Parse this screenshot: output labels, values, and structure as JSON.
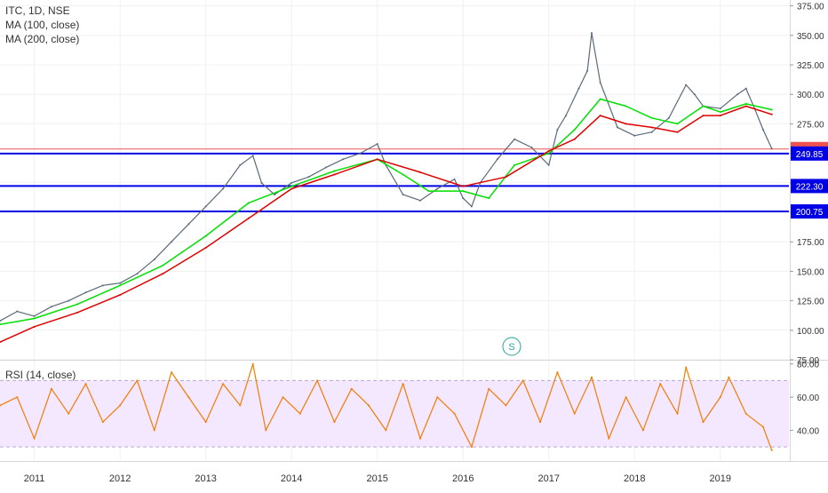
{
  "header": {
    "symbol_line": "ITC, 1D, NSE",
    "ma100_label": "MA (100, close)",
    "ma200_label": "MA (200, close)",
    "rsi_label": "RSI (14, close)",
    "marker_letter": "S"
  },
  "colors": {
    "candle_up": "#26a69a",
    "candle_down": "#ef5350",
    "ma100": "#00e000",
    "ma200": "#e00000",
    "level_line": "#0000e6",
    "rsi_line": "#f57c00",
    "rsi_band_fill": "#f3e8ff",
    "price_badge": "#ef5350",
    "level_badge": "#0000e6",
    "grid": "#f0f0f0",
    "axis_text": "#333333"
  },
  "chart_data": [
    {
      "type": "line",
      "panel": "price",
      "xlabel": "",
      "ylabel": "",
      "x_ticks": [
        "2011",
        "2012",
        "2013",
        "2014",
        "2015",
        "2016",
        "2017",
        "2018",
        "2019"
      ],
      "y_ticks": [
        "375.00",
        "350.00",
        "325.00",
        "300.00",
        "275.00",
        "250.00",
        "225.00",
        "200.00",
        "175.00",
        "150.00",
        "125.00",
        "100.00",
        "75.00"
      ],
      "ylim": [
        75,
        380
      ],
      "xlim": [
        2010.6,
        2019.8
      ],
      "series": [
        {
          "name": "",
          "style": "price",
          "x": [
            2010.6,
            2010.8,
            2011.0,
            2011.2,
            2011.4,
            2011.6,
            2011.8,
            2012.0,
            2012.2,
            2012.4,
            2012.6,
            2012.8,
            2013.0,
            2013.2,
            2013.4,
            2013.55,
            2013.65,
            2013.8,
            2014.0,
            2014.2,
            2014.4,
            2014.6,
            2014.8,
            2015.0,
            2015.1,
            2015.3,
            2015.5,
            2015.7,
            2015.9,
            2016.0,
            2016.1,
            2016.2,
            2016.4,
            2016.6,
            2016.8,
            2017.0,
            2017.1,
            2017.2,
            2017.35,
            2017.45,
            2017.5,
            2017.6,
            2017.8,
            2018.0,
            2018.2,
            2018.4,
            2018.6,
            2018.7,
            2018.8,
            2019.0,
            2019.2,
            2019.3,
            2019.4,
            2019.5,
            2019.6
          ],
          "y": [
            108,
            116,
            112,
            120,
            125,
            132,
            138,
            140,
            148,
            160,
            175,
            190,
            205,
            220,
            240,
            248,
            225,
            215,
            225,
            230,
            238,
            245,
            250,
            258,
            240,
            215,
            210,
            220,
            228,
            212,
            205,
            225,
            245,
            262,
            255,
            240,
            270,
            282,
            305,
            320,
            352,
            310,
            272,
            265,
            268,
            280,
            308,
            300,
            290,
            288,
            300,
            305,
            288,
            270,
            254
          ]
        },
        {
          "name": "MA (100, close)",
          "style": "ma100",
          "x": [
            2010.6,
            2011.0,
            2011.5,
            2012.0,
            2012.5,
            2013.0,
            2013.5,
            2014.0,
            2014.5,
            2015.0,
            2015.3,
            2015.6,
            2016.0,
            2016.3,
            2016.6,
            2017.0,
            2017.3,
            2017.6,
            2017.9,
            2018.2,
            2018.5,
            2018.8,
            2019.0,
            2019.3,
            2019.6
          ],
          "y": [
            105,
            110,
            122,
            138,
            155,
            180,
            208,
            222,
            235,
            245,
            232,
            218,
            218,
            212,
            240,
            250,
            270,
            296,
            290,
            280,
            275,
            290,
            285,
            292,
            287
          ]
        },
        {
          "name": "MA (200, close)",
          "style": "ma200",
          "x": [
            2010.6,
            2011.0,
            2011.5,
            2012.0,
            2012.5,
            2013.0,
            2013.5,
            2014.0,
            2014.5,
            2015.0,
            2015.5,
            2016.0,
            2016.5,
            2017.0,
            2017.3,
            2017.6,
            2017.9,
            2018.2,
            2018.5,
            2018.8,
            2019.0,
            2019.3,
            2019.6
          ],
          "y": [
            90,
            103,
            115,
            130,
            148,
            170,
            195,
            220,
            232,
            245,
            234,
            222,
            230,
            252,
            262,
            282,
            275,
            272,
            268,
            282,
            282,
            290,
            283
          ]
        }
      ],
      "annotations": [
        {
          "label": "253.65",
          "value": 253.65,
          "kind": "last-price"
        },
        {
          "label": "249.85",
          "value": 249.85,
          "kind": "horizontal-level"
        },
        {
          "label": "222.30",
          "value": 222.3,
          "kind": "horizontal-level"
        },
        {
          "label": "200.75",
          "value": 200.75,
          "kind": "horizontal-level"
        }
      ]
    },
    {
      "type": "line",
      "panel": "rsi",
      "xlabel": "",
      "ylabel": "",
      "y_ticks": [
        "80.00",
        "60.00",
        "40.00"
      ],
      "ylim": [
        22,
        82
      ],
      "band": [
        30,
        70
      ],
      "series": [
        {
          "name": "RSI (14, close)",
          "style": "rsi",
          "x": [
            2010.6,
            2010.8,
            2011.0,
            2011.2,
            2011.4,
            2011.6,
            2011.8,
            2012.0,
            2012.2,
            2012.4,
            2012.6,
            2012.8,
            2013.0,
            2013.2,
            2013.4,
            2013.55,
            2013.7,
            2013.9,
            2014.1,
            2014.3,
            2014.5,
            2014.7,
            2014.9,
            2015.1,
            2015.3,
            2015.5,
            2015.7,
            2015.9,
            2016.1,
            2016.3,
            2016.5,
            2016.7,
            2016.9,
            2017.1,
            2017.3,
            2017.5,
            2017.7,
            2017.9,
            2018.1,
            2018.3,
            2018.5,
            2018.6,
            2018.8,
            2019.0,
            2019.1,
            2019.3,
            2019.5,
            2019.6
          ],
          "y": [
            55,
            60,
            35,
            65,
            50,
            68,
            45,
            55,
            70,
            40,
            75,
            60,
            45,
            68,
            55,
            80,
            40,
            60,
            50,
            70,
            45,
            65,
            55,
            40,
            68,
            35,
            60,
            50,
            30,
            65,
            55,
            70,
            45,
            75,
            50,
            72,
            35,
            60,
            40,
            68,
            50,
            78,
            45,
            60,
            72,
            50,
            42,
            28
          ]
        }
      ]
    }
  ]
}
